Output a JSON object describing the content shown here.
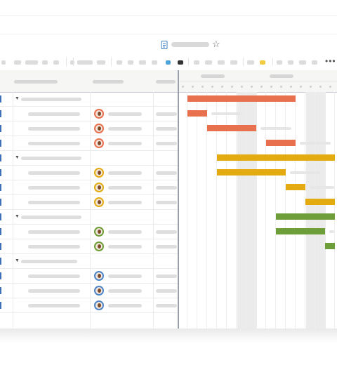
{
  "app": {
    "title_icon": "document-icon",
    "favorite_icon": "star-icon",
    "more_icon": "more-horizontal-icon",
    "more_glyph": "•••",
    "star_glyph": "☆"
  },
  "colors": {
    "group1": "#e8704f",
    "group2": "#e3ab0f",
    "group3": "#6e9e3a",
    "group4": "#4e86c8",
    "accent_marker": "#3e6fb8",
    "toolbar_blue": "#4fa3d8",
    "toolbar_dark": "#333333",
    "toolbar_yellow": "#f2cc3f"
  },
  "groups": [
    {
      "color": "#e8704f",
      "avatar_border": "#e8704f",
      "parent_bar": {
        "start": 1,
        "end": 12
      },
      "tasks": [
        {
          "start": 1,
          "end": 3
        },
        {
          "start": 3,
          "end": 8
        },
        {
          "start": 9,
          "end": 12
        }
      ]
    },
    {
      "color": "#e3ab0f",
      "avatar_border": "#e3ab0f",
      "parent_bar": {
        "start": 4,
        "end": 16
      },
      "tasks": [
        {
          "start": 4,
          "end": 11
        },
        {
          "start": 11,
          "end": 13
        },
        {
          "start": 13,
          "end": 16
        }
      ]
    },
    {
      "color": "#6e9e3a",
      "avatar_border": "#6e9e3a",
      "parent_bar": {
        "start": 10,
        "end": 16
      },
      "tasks": [
        {
          "start": 10,
          "end": 15
        },
        {
          "start": 15,
          "end": 16
        }
      ]
    },
    {
      "color": "#4e86c8",
      "avatar_border": "#4e86c8",
      "tasks": [
        {},
        {},
        {}
      ]
    }
  ],
  "timeline": {
    "days_visible": 16,
    "weekend_days": [
      6,
      13
    ]
  }
}
